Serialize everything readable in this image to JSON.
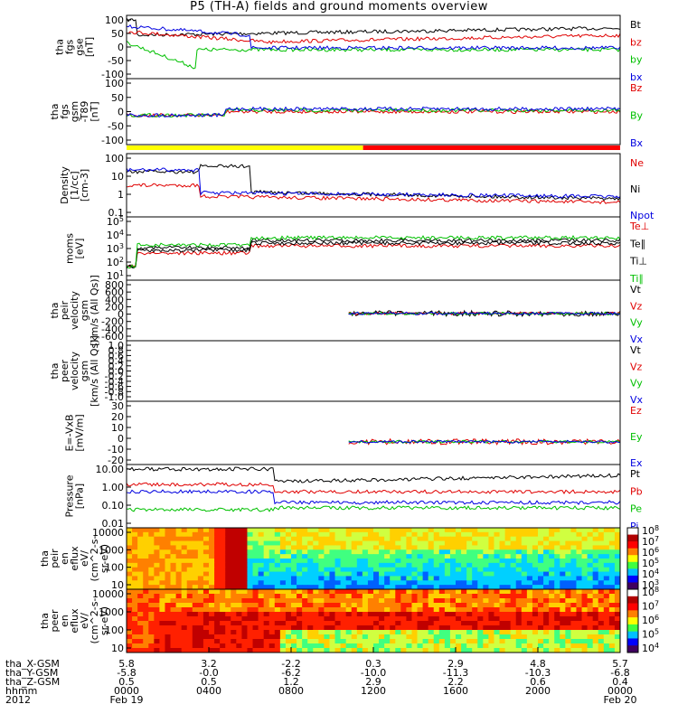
{
  "title": "P5 (TH-A) fields and ground moments overview",
  "chart_data": [
    {
      "id": "fgs_gse",
      "type": "line",
      "ylabel": [
        "tha",
        "fgs",
        "gse",
        "[nT]"
      ],
      "yticks": [
        "100",
        "50",
        "0",
        "-50",
        "-100"
      ],
      "ylim": [
        -100,
        100
      ],
      "legend": [
        {
          "name": "Bt",
          "color": "#000000"
        },
        {
          "name": "bz",
          "color": "#e00000"
        },
        {
          "name": "by",
          "color": "#00c000"
        },
        {
          "name": "bx",
          "color": "#0000e0"
        }
      ]
    },
    {
      "id": "fgs_gsm",
      "type": "line",
      "ylabel": [
        "tha",
        "fgs",
        "gsm",
        "-T89",
        "[nT]"
      ],
      "yticks": [
        "100",
        "50",
        "0",
        "-50",
        "-100"
      ],
      "ylim": [
        -100,
        100
      ],
      "legend": [
        {
          "name": "Bz",
          "color": "#e00000"
        },
        {
          "name": "By",
          "color": "#00c000"
        },
        {
          "name": "Bx",
          "color": "#0000e0"
        }
      ]
    },
    {
      "id": "mode_bar",
      "type": "bar",
      "segments": [
        {
          "from": "0000",
          "to": "1130",
          "color": "#ffff00"
        },
        {
          "from": "1130",
          "to": "2400",
          "color": "#ff0000"
        }
      ]
    },
    {
      "id": "density",
      "type": "line",
      "scale": "log",
      "ylabel": [
        "Density",
        "[1/cc]",
        "[cm-3]"
      ],
      "yticks": [
        "100",
        "10",
        "1",
        "0.1"
      ],
      "ylim": [
        0.05,
        200
      ],
      "legend": [
        {
          "name": "Ne",
          "color": "#e00000"
        },
        {
          "name": "Ni",
          "color": "#000000"
        },
        {
          "name": "Npot",
          "color": "#0000e0"
        }
      ]
    },
    {
      "id": "temperature",
      "type": "line",
      "scale": "log",
      "ylabel": [
        "moms",
        "[eV]"
      ],
      "yticks": [
        "10^5",
        "10^4",
        "10^3",
        "10^2",
        "10^1"
      ],
      "ylim": [
        10,
        100000
      ],
      "legend": [
        {
          "name": "Te⊥",
          "color": "#e00000"
        },
        {
          "name": "Te∥",
          "color": "#000000"
        },
        {
          "name": "Ti⊥",
          "color": "#000000"
        },
        {
          "name": "Ti∥",
          "color": "#00c000"
        }
      ]
    },
    {
      "id": "peir_velocity",
      "type": "line",
      "ylabel": [
        "tha",
        "peir",
        "velocity",
        "gsm",
        "[km/s (All Qs)]"
      ],
      "yticks": [
        "800",
        "600",
        "400",
        "200",
        "0",
        "-200",
        "-400",
        "-600"
      ],
      "ylim": [
        -600,
        800
      ],
      "legend": [
        {
          "name": "Vt",
          "color": "#000000"
        },
        {
          "name": "Vz",
          "color": "#e00000"
        },
        {
          "name": "Vy",
          "color": "#00c000"
        },
        {
          "name": "Vx",
          "color": "#0000e0"
        }
      ]
    },
    {
      "id": "peer_velocity",
      "type": "line",
      "ylabel": [
        "tha",
        "peer",
        "velocity",
        "gsm",
        "[km/s (All Qs)]"
      ],
      "yticks": [
        "1.0",
        "0.8",
        "0.6",
        "0.4",
        "0.2",
        "0.0",
        "-0.2",
        "-0.4",
        "-0.6",
        "-0.8",
        "-1.0"
      ],
      "ylim": [
        -1,
        1
      ],
      "legend": [
        {
          "name": "Vt",
          "color": "#000000"
        },
        {
          "name": "Vz",
          "color": "#e00000"
        },
        {
          "name": "Vy",
          "color": "#00c000"
        },
        {
          "name": "Vx",
          "color": "#0000e0"
        }
      ]
    },
    {
      "id": "efield",
      "type": "line",
      "ylabel": [
        "E=-VxB",
        "[mV/m]"
      ],
      "yticks": [
        "30",
        "20",
        "10",
        "0",
        "-10",
        "-20"
      ],
      "ylim": [
        -20,
        30
      ],
      "legend": [
        {
          "name": "Ez",
          "color": "#e00000"
        },
        {
          "name": "Ey",
          "color": "#00c000"
        },
        {
          "name": "Ex",
          "color": "#0000e0"
        }
      ]
    },
    {
      "id": "pressure",
      "type": "line",
      "scale": "log",
      "ylabel": [
        "Pressure",
        "[nPa]"
      ],
      "yticks": [
        "10.00",
        "1.00",
        "0.10",
        "0.01"
      ],
      "ylim": [
        0.005,
        30
      ],
      "legend": [
        {
          "name": "Pt",
          "color": "#000000"
        },
        {
          "name": "Pb",
          "color": "#e00000"
        },
        {
          "name": "Pe",
          "color": "#00c000"
        },
        {
          "name": "Pi",
          "color": "#0000e0"
        }
      ]
    },
    {
      "id": "peir_spec",
      "type": "heatmap",
      "scale": "log",
      "ylabel": [
        "tha",
        "peir",
        "en",
        "eflux",
        "eV/",
        "(cm^2-s-",
        "sr-eV)"
      ],
      "yticks": [
        "10000",
        "1000",
        "100",
        "10"
      ],
      "colorbar": [
        "10^8",
        "10^7",
        "10^6",
        "10^5",
        "10^4",
        "10^3"
      ]
    },
    {
      "id": "peer_spec",
      "type": "heatmap",
      "scale": "log",
      "ylabel": [
        "tha",
        "peer",
        "en",
        "eflux",
        "eV/",
        "(cm^2-s-",
        "sr-eV)"
      ],
      "yticks": [
        "10000",
        "1000",
        "100",
        "10"
      ],
      "colorbar": [
        "10^8",
        "10^7",
        "10^6",
        "10^5",
        "10^4"
      ]
    }
  ],
  "xaxis": {
    "row_labels": [
      "tha_X-GSM",
      "tha_Y-GSM",
      "tha_Z-GSM",
      "hhmm",
      "2012"
    ],
    "columns": [
      {
        "x": "5.8",
        "y": "-5.8",
        "z": "0.5",
        "t": "0000",
        "d": "Feb 19"
      },
      {
        "x": "3.2",
        "y": "-0.0",
        "z": "0.5",
        "t": "0400",
        "d": ""
      },
      {
        "x": "-2.2",
        "y": "-6.2",
        "z": "1.2",
        "t": "0800",
        "d": ""
      },
      {
        "x": "0.3",
        "y": "-10.0",
        "z": "2.9",
        "t": "1200",
        "d": ""
      },
      {
        "x": "2.9",
        "y": "-11.3",
        "z": "2.2",
        "t": "1600",
        "d": ""
      },
      {
        "x": "4.8",
        "y": "-10.3",
        "z": "0.6",
        "t": "2000",
        "d": ""
      },
      {
        "x": "5.7",
        "y": "-6.8",
        "z": "0.4",
        "t": "0000",
        "d": "Feb 20"
      }
    ]
  }
}
